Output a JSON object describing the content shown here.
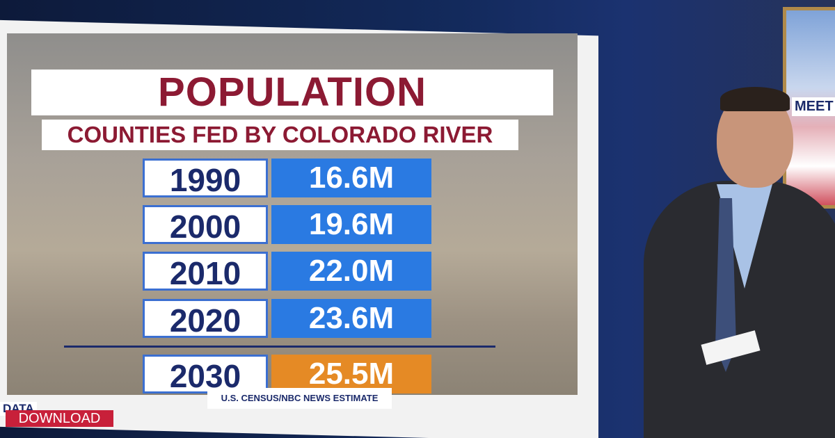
{
  "header": {
    "title": "POPULATION",
    "subtitle": "COUNTIES FED BY COLORADO RIVER"
  },
  "table": {
    "rows": [
      [
        "1990",
        "16.6M"
      ],
      [
        "2000",
        "19.6M"
      ],
      [
        "2010",
        "22.0M"
      ],
      [
        "2020",
        "23.6M"
      ],
      [
        "2030",
        "25.5M"
      ]
    ]
  },
  "source": "U.S. CENSUS/NBC NEWS ESTIMATE",
  "branding": {
    "segment_top": "DATA",
    "segment_bottom": "DOWNLOAD",
    "show": "MEET"
  }
}
